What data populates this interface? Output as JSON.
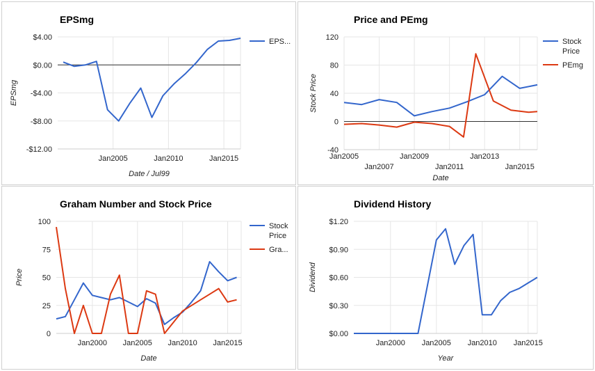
{
  "chart_data": [
    {
      "type": "line",
      "title": "EPSmg",
      "xlabel": "Date / Jul99",
      "ylabel": "EPSmg",
      "ylim": [
        -12,
        4
      ],
      "yticks": [
        4,
        0,
        -4,
        -8,
        -12
      ],
      "ytick_labels": [
        "$4.00",
        "$0.00",
        "-$4.00",
        "-$8.00",
        "-$12.00"
      ],
      "xlim": [
        2000,
        2016.5
      ],
      "xticks": [
        2005,
        2010,
        2015
      ],
      "xtick_labels": [
        "Jan2005",
        "Jan2010",
        "Jan2015"
      ],
      "grid": true,
      "legend": "right",
      "zero_line": true,
      "series": [
        {
          "name": "EPS...",
          "color": "#3366cc",
          "x": [
            2000.5,
            2001.5,
            2002.5,
            2003.5,
            2004.5,
            2005.5,
            2006.5,
            2007.5,
            2008.5,
            2009.5,
            2010.5,
            2011.5,
            2012.5,
            2013.5,
            2014.5,
            2015.5,
            2016.5
          ],
          "y": [
            0.4,
            -0.2,
            0.0,
            0.5,
            -6.4,
            -8.0,
            -5.5,
            -3.3,
            -7.5,
            -4.4,
            -2.7,
            -1.3,
            0.3,
            2.2,
            3.4,
            3.5,
            3.8
          ]
        }
      ]
    },
    {
      "type": "line",
      "title": "Price and PEmg",
      "xlabel": "Date",
      "ylabel": "Stock Price",
      "ylim": [
        -40,
        120
      ],
      "yticks": [
        120,
        80,
        40,
        0,
        -40
      ],
      "ytick_labels": [
        "120",
        "80",
        "40",
        "0",
        "-40"
      ],
      "xlim": [
        2005,
        2016
      ],
      "xticks": [
        2005,
        2007,
        2009,
        2011,
        2013,
        2015
      ],
      "xtick_labels": [
        "Jan2005",
        "Jan2007",
        "Jan2009",
        "Jan2011",
        "Jan2013",
        "Jan2015"
      ],
      "grid": true,
      "legend": "right",
      "zero_line": true,
      "series": [
        {
          "name": "Stock Price",
          "color": "#3366cc",
          "x": [
            2005,
            2006,
            2007,
            2008,
            2009,
            2010,
            2011,
            2012,
            2013,
            2014,
            2015,
            2016
          ],
          "y": [
            27,
            24,
            31,
            27,
            8,
            14,
            19,
            28,
            38,
            64,
            47,
            52
          ]
        },
        {
          "name": "PEmg",
          "color": "#dc3912",
          "x": [
            2005,
            2006,
            2007,
            2008,
            2009,
            2010,
            2011,
            2011.8,
            2012.5,
            2013.5,
            2014.5,
            2015.5,
            2016
          ],
          "y": [
            -4,
            -3,
            -5,
            -8,
            -1,
            -3,
            -7,
            -22,
            96,
            29,
            16,
            13,
            14
          ]
        }
      ]
    },
    {
      "type": "line",
      "title": "Graham Number and Stock Price",
      "xlabel": "Date",
      "ylabel": "Price",
      "ylim": [
        0,
        100
      ],
      "yticks": [
        100,
        75,
        50,
        25,
        0
      ],
      "ytick_labels": [
        "100",
        "75",
        "50",
        "25",
        "0"
      ],
      "xlim": [
        1996,
        2016.5
      ],
      "xticks": [
        2000,
        2005,
        2010,
        2015
      ],
      "xtick_labels": [
        "Jan2000",
        "Jan2005",
        "Jan2010",
        "Jan2015"
      ],
      "grid": true,
      "legend": "right",
      "series": [
        {
          "name": "Stock Price",
          "color": "#3366cc",
          "x": [
            1996,
            1997,
            1998,
            1999,
            2000,
            2001,
            2002,
            2003,
            2004,
            2005,
            2006,
            2007,
            2008,
            2009,
            2010,
            2011,
            2012,
            2013,
            2014,
            2015,
            2016
          ],
          "y": [
            13,
            15,
            30,
            45,
            34,
            32,
            30,
            32,
            28,
            24,
            31,
            27,
            8,
            14,
            19,
            28,
            38,
            64,
            55,
            47,
            50
          ]
        },
        {
          "name": "Gra...",
          "color": "#dc3912",
          "x": [
            1996,
            1997,
            1998,
            1999,
            2000,
            2001,
            2002,
            2003,
            2004,
            2005,
            2006,
            2007,
            2008,
            2009,
            2010,
            2011,
            2012,
            2013,
            2014,
            2015,
            2016
          ],
          "y": [
            95,
            40,
            0,
            25,
            0,
            0,
            35,
            52,
            0,
            0,
            38,
            35,
            0,
            10,
            20,
            25,
            30,
            35,
            40,
            28,
            30
          ]
        }
      ]
    },
    {
      "type": "line",
      "title": "Dividend History",
      "xlabel": "Year",
      "ylabel": "Dividend",
      "ylim": [
        0,
        1.2
      ],
      "yticks": [
        1.2,
        0.9,
        0.6,
        0.3,
        0.0
      ],
      "ytick_labels": [
        "$1.20",
        "$0.90",
        "$0.60",
        "$0.30",
        "$0.00"
      ],
      "xlim": [
        1996,
        2016
      ],
      "xticks": [
        2000,
        2005,
        2010,
        2015
      ],
      "xtick_labels": [
        "Jan2000",
        "Jan2005",
        "Jan2010",
        "Jan2015"
      ],
      "grid": true,
      "legend": "none",
      "series": [
        {
          "name": "",
          "color": "#3366cc",
          "x": [
            1996,
            1997,
            1998,
            1999,
            2000,
            2001,
            2002,
            2003,
            2004,
            2005,
            2006,
            2007,
            2008,
            2009,
            2010,
            2011,
            2012,
            2013,
            2014,
            2015,
            2016
          ],
          "y": [
            0,
            0,
            0,
            0,
            0,
            0,
            0,
            0,
            0.5,
            1.0,
            1.12,
            0.74,
            0.94,
            1.06,
            0.2,
            0.2,
            0.35,
            0.44,
            0.48,
            0.54,
            0.6
          ]
        }
      ]
    }
  ]
}
